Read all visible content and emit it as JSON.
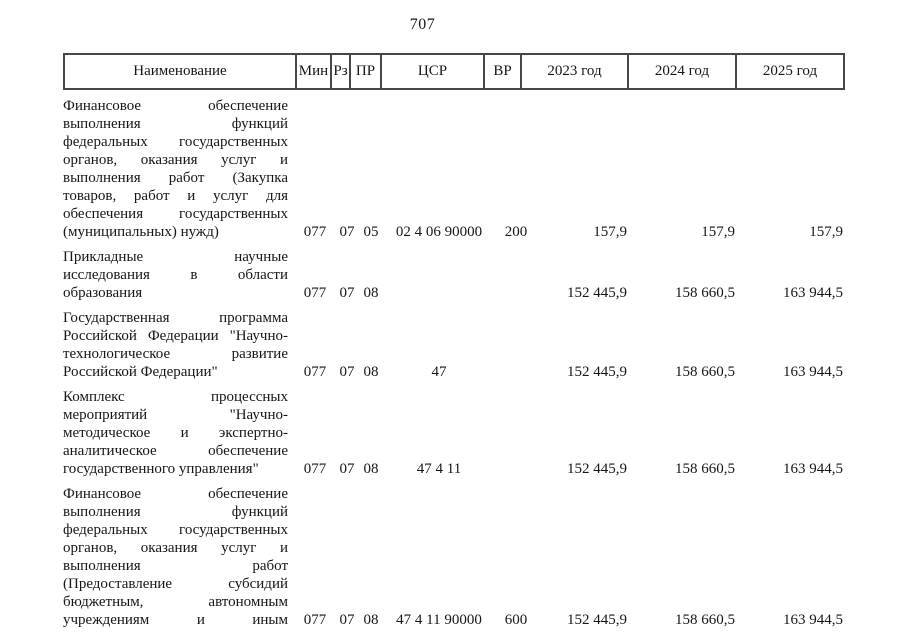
{
  "page": {
    "number": "707"
  },
  "table": {
    "headers": {
      "name": "Наименование",
      "min": "Мин",
      "rz": "Рз",
      "pr": "ПР",
      "csr": "ЦСР",
      "vr": "ВР",
      "y2023": "2023 год",
      "y2024": "2024 год",
      "y2025": "2025 год"
    },
    "rows": [
      {
        "name": "Финансовое обеспечение выполнения функций федеральных государственных органов, оказания услуг и выполнения работ (Закупка товаров, работ и услуг для обеспечения государственных (муниципальных) нужд)",
        "min": "077",
        "rz": "07",
        "pr": "05",
        "csr": "02 4 06 90000",
        "vr": "200",
        "y2023": "157,9",
        "y2024": "157,9",
        "y2025": "157,9",
        "continued": false
      },
      {
        "name": "Прикладные научные исследования в области образования",
        "min": "077",
        "rz": "07",
        "pr": "08",
        "csr": "",
        "vr": "",
        "y2023": "152 445,9",
        "y2024": "158 660,5",
        "y2025": "163 944,5",
        "continued": false
      },
      {
        "name": "Государственная программа Российской Федерации \"Научно-технологическое развитие Российской Федерации\"",
        "min": "077",
        "rz": "07",
        "pr": "08",
        "csr": "47",
        "vr": "",
        "y2023": "152 445,9",
        "y2024": "158 660,5",
        "y2025": "163 944,5",
        "continued": false
      },
      {
        "name": "Комплекс процессных мероприятий \"Научно-методическое и экспертно-аналитическое обеспечение государственного управления\"",
        "min": "077",
        "rz": "07",
        "pr": "08",
        "csr": "47 4 11",
        "vr": "",
        "y2023": "152 445,9",
        "y2024": "158 660,5",
        "y2025": "163 944,5",
        "continued": false
      },
      {
        "name": "Финансовое обеспечение выполнения функций федеральных государственных органов, оказания услуг и выполнения работ (Предоставление субсидий бюджетным, автономным учреждениям и иным",
        "min": "077",
        "rz": "07",
        "pr": "08",
        "csr": "47 4 11 90000",
        "vr": "600",
        "y2023": "152 445,9",
        "y2024": "158 660,5",
        "y2025": "163 944,5",
        "continued": true
      }
    ]
  }
}
